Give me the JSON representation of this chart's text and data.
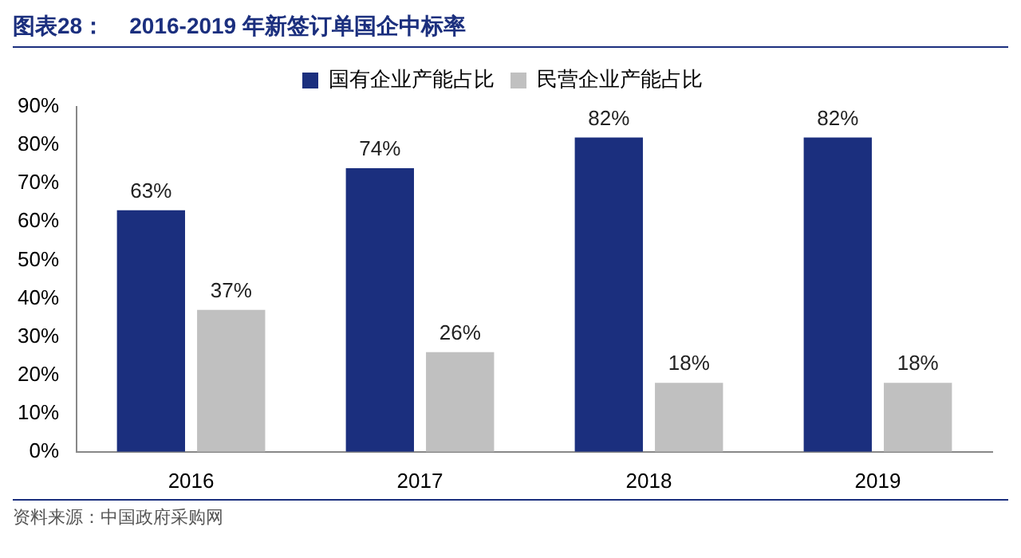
{
  "chart_data": {
    "type": "bar",
    "title": "图表28：    2016-2019 年新签订单国企中标率",
    "categories": [
      "2016",
      "2017",
      "2018",
      "2019"
    ],
    "series": [
      {
        "name": "国有企业产能占比",
        "color": "#1b2f7e",
        "values": [
          63,
          74,
          82,
          82
        ],
        "value_labels": [
          "63%",
          "74%",
          "82%",
          "82%"
        ]
      },
      {
        "name": "民营企业产能占比",
        "color": "#c0c0c0",
        "values": [
          37,
          26,
          18,
          18
        ],
        "value_labels": [
          "37%",
          "26%",
          "18%",
          "18%"
        ]
      }
    ],
    "ylim": [
      0,
      90
    ],
    "yticks": [
      {
        "value": 0,
        "label": "0%"
      },
      {
        "value": 10,
        "label": "10%"
      },
      {
        "value": 20,
        "label": "20%"
      },
      {
        "value": 30,
        "label": "30%"
      },
      {
        "value": 40,
        "label": "40%"
      },
      {
        "value": 50,
        "label": "50%"
      },
      {
        "value": 60,
        "label": "60%"
      },
      {
        "value": 70,
        "label": "70%"
      },
      {
        "value": 80,
        "label": "80%"
      },
      {
        "value": 90,
        "label": "90%"
      }
    ],
    "grid": false,
    "legend": "top",
    "annotations": [
      "资料来源：中国政府采购网"
    ]
  }
}
